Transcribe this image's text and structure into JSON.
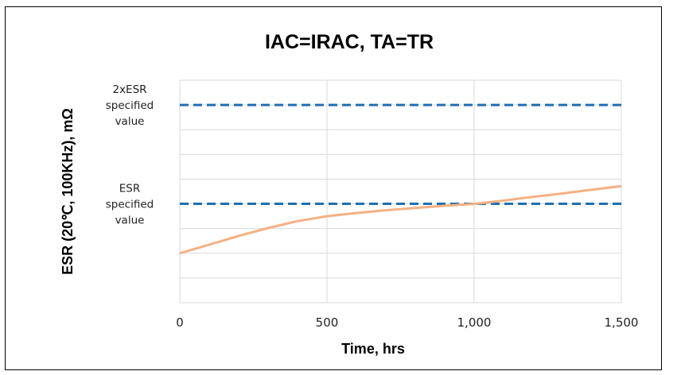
{
  "chart_data": {
    "type": "line",
    "title": "IAC=IRAC, TA=TR",
    "xlabel": "Time, hrs",
    "ylabel": "ESR (20℃, 100KHz), mΩ",
    "xlim": [
      0,
      1500
    ],
    "ylim": [
      0,
      9
    ],
    "x_ticks": [
      "0",
      "500",
      "1,000",
      "1,500"
    ],
    "x_tick_values": [
      0,
      500,
      1000,
      1500
    ],
    "grid": true,
    "reference_lines": [
      {
        "label_lines": [
          "2xESR",
          "specified",
          "value"
        ],
        "y": 8,
        "color": "#1f6fb2",
        "style": "dashed"
      },
      {
        "label_lines": [
          "ESR",
          "specified",
          "value"
        ],
        "y": 4,
        "color": "#1f6fb2",
        "style": "dashed"
      }
    ],
    "series": [
      {
        "color": "#f4b183",
        "x": [
          0,
          100,
          200,
          300,
          400,
          500,
          600,
          700,
          800,
          900,
          1000,
          1100,
          1200,
          1300,
          1400,
          1500
        ],
        "y": [
          2.0,
          2.35,
          2.7,
          3.02,
          3.3,
          3.5,
          3.63,
          3.74,
          3.83,
          3.92,
          4.0,
          4.13,
          4.28,
          4.42,
          4.57,
          4.72
        ]
      }
    ]
  }
}
